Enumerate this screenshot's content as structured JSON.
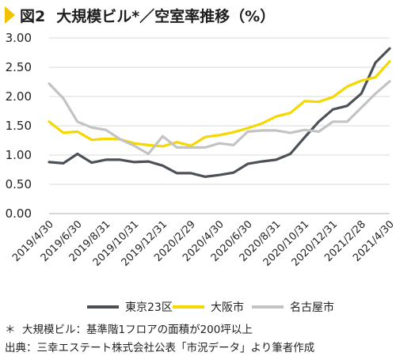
{
  "figure": {
    "label": "図2",
    "title": "大規模ビル*／空室率推移（%）"
  },
  "notes": {
    "asterisk": "＊",
    "definition": "大規模ビル：基準階1フロアの面積が200坪以上",
    "source": "出典：三幸エステート株式会社公表「市況データ」より筆者作成"
  },
  "chart_data": {
    "type": "line",
    "title": "大規模ビル*／空室率推移（%）",
    "xlabel": "",
    "ylabel": "",
    "ylim": [
      0,
      3
    ],
    "yticks": [
      0.0,
      0.5,
      1.0,
      1.5,
      2.0,
      2.5,
      3.0
    ],
    "ytick_labels": [
      "0.00",
      "0.50",
      "1.00",
      "1.50",
      "2.00",
      "2.50",
      "3.00"
    ],
    "grid": true,
    "legend_position": "bottom",
    "x": [
      "2019/4",
      "2019/5",
      "2019/6",
      "2019/7",
      "2019/8",
      "2019/9",
      "2019/10",
      "2019/11",
      "2019/12",
      "2020/1",
      "2020/2",
      "2020/3",
      "2020/4",
      "2020/5",
      "2020/6",
      "2020/7",
      "2020/8",
      "2020/9",
      "2020/10",
      "2020/11",
      "2020/12",
      "2021/1",
      "2021/2",
      "2021/3",
      "2021/4"
    ],
    "xtick_labels": [
      "2019/4/30",
      "2019/6/30",
      "2019/8/31",
      "2019/10/31",
      "2019/12/31",
      "2020/2/29",
      "2020/4/30",
      "2020/6/30",
      "2020/8/31",
      "2020/10/31",
      "2020/12/31",
      "2021/2/28",
      "2021/4/30"
    ],
    "series": [
      {
        "name": "東京23区",
        "color": "#4d5157",
        "values": [
          0.88,
          0.86,
          1.02,
          0.87,
          0.92,
          0.92,
          0.88,
          0.89,
          0.82,
          0.69,
          0.69,
          0.63,
          0.66,
          0.7,
          0.85,
          0.89,
          0.92,
          1.02,
          1.3,
          1.57,
          1.78,
          1.84,
          2.05,
          2.58,
          2.82
        ]
      },
      {
        "name": "大阪市",
        "color": "#f5d800",
        "values": [
          1.57,
          1.38,
          1.4,
          1.26,
          1.28,
          1.27,
          1.2,
          1.17,
          1.15,
          1.22,
          1.16,
          1.31,
          1.34,
          1.39,
          1.46,
          1.54,
          1.66,
          1.72,
          1.92,
          1.91,
          1.99,
          2.17,
          2.27,
          2.33,
          2.6
        ]
      },
      {
        "name": "名古屋市",
        "color": "#c3c3c3",
        "values": [
          2.22,
          1.97,
          1.57,
          1.47,
          1.43,
          1.27,
          1.16,
          1.02,
          1.32,
          1.13,
          1.13,
          1.13,
          1.2,
          1.17,
          1.4,
          1.42,
          1.42,
          1.38,
          1.43,
          1.4,
          1.57,
          1.57,
          1.81,
          2.05,
          2.26
        ]
      }
    ]
  }
}
